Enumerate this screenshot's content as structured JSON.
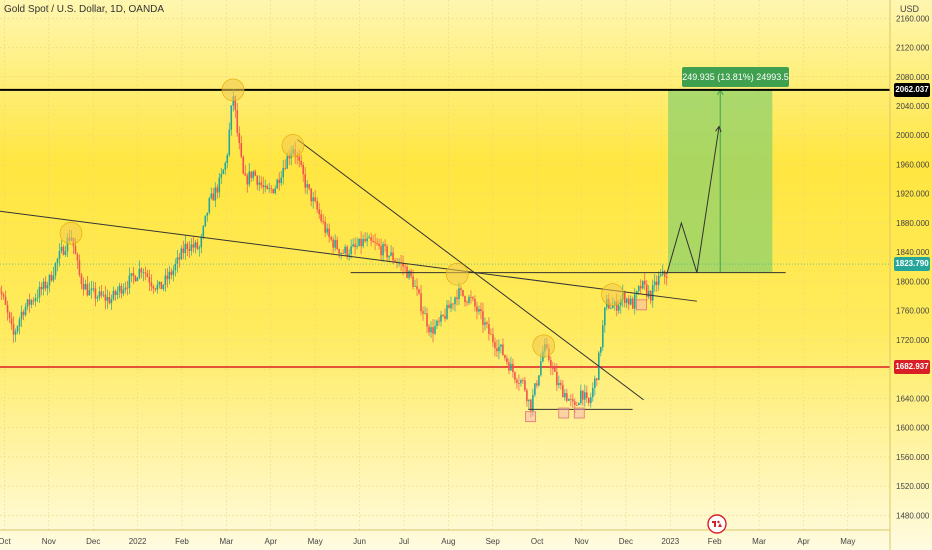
{
  "title": "Gold Spot / U.S. Dollar, 1D, OANDA",
  "currency": "USD",
  "chart_data": {
    "type": "candlestick",
    "yticks": [
      1480,
      1520,
      1560,
      1600,
      1640,
      1680,
      1720,
      1760,
      1800,
      1840,
      1880,
      1920,
      1960,
      2000,
      2040,
      2080,
      2120,
      2160
    ],
    "ytick_labels": [
      "1480.000",
      "1520.000",
      "1560.000",
      "1600.000",
      "1640.000",
      "1680.000",
      "1720.000",
      "1760.000",
      "1800.000",
      "1840.000",
      "1880.000",
      "1920.000",
      "1960.000",
      "2000.000",
      "2040.000",
      "2080.000",
      "2120.000",
      "2160.000"
    ],
    "ylim": [
      1460,
      2185
    ],
    "x_months": [
      "Oct",
      "Nov",
      "Dec",
      "2022",
      "Feb",
      "Mar",
      "Apr",
      "May",
      "Jun",
      "Jul",
      "Aug",
      "Sep",
      "Oct",
      "Nov",
      "Dec",
      "2023",
      "Feb",
      "Mar",
      "Apr",
      "May"
    ],
    "x_month_index": [
      0,
      1,
      2,
      3,
      4,
      5,
      6,
      7,
      8,
      9,
      10,
      11,
      12,
      13,
      14,
      15,
      16,
      17,
      18,
      19
    ],
    "xlim": [
      -0.1,
      19.95
    ],
    "price_path": [
      [
        -0.2,
        1805
      ],
      [
        0.0,
        1770
      ],
      [
        0.2,
        1725
      ],
      [
        0.4,
        1760
      ],
      [
        0.7,
        1780
      ],
      [
        1.0,
        1800
      ],
      [
        1.2,
        1830
      ],
      [
        1.5,
        1865
      ],
      [
        1.7,
        1805
      ],
      [
        1.9,
        1785
      ],
      [
        2.1,
        1780
      ],
      [
        2.4,
        1775
      ],
      [
        2.6,
        1790
      ],
      [
        2.9,
        1805
      ],
      [
        3.1,
        1820
      ],
      [
        3.3,
        1800
      ],
      [
        3.5,
        1790
      ],
      [
        3.8,
        1815
      ],
      [
        4.1,
        1850
      ],
      [
        4.4,
        1845
      ],
      [
        4.6,
        1905
      ],
      [
        4.85,
        1935
      ],
      [
        5.0,
        1965
      ],
      [
        5.15,
        2058
      ],
      [
        5.25,
        2000
      ],
      [
        5.4,
        1935
      ],
      [
        5.6,
        1950
      ],
      [
        5.9,
        1920
      ],
      [
        6.1,
        1930
      ],
      [
        6.3,
        1960
      ],
      [
        6.5,
        1985
      ],
      [
        6.8,
        1930
      ],
      [
        7.1,
        1890
      ],
      [
        7.3,
        1860
      ],
      [
        7.6,
        1840
      ],
      [
        7.9,
        1845
      ],
      [
        8.1,
        1855
      ],
      [
        8.4,
        1848
      ],
      [
        8.7,
        1835
      ],
      [
        9.0,
        1820
      ],
      [
        9.2,
        1800
      ],
      [
        9.4,
        1765
      ],
      [
        9.6,
        1732
      ],
      [
        9.8,
        1742
      ],
      [
        10.0,
        1762
      ],
      [
        10.2,
        1785
      ],
      [
        10.5,
        1775
      ],
      [
        10.7,
        1755
      ],
      [
        10.95,
        1725
      ],
      [
        11.2,
        1705
      ],
      [
        11.5,
        1672
      ],
      [
        11.7,
        1660
      ],
      [
        11.85,
        1628
      ],
      [
        12.0,
        1665
      ],
      [
        12.15,
        1710
      ],
      [
        12.3,
        1690
      ],
      [
        12.45,
        1660
      ],
      [
        12.65,
        1645
      ],
      [
        12.85,
        1625
      ],
      [
        13.0,
        1652
      ],
      [
        13.15,
        1628
      ],
      [
        13.35,
        1675
      ],
      [
        13.55,
        1770
      ],
      [
        13.75,
        1765
      ],
      [
        13.95,
        1780
      ],
      [
        14.15,
        1768
      ],
      [
        14.35,
        1795
      ],
      [
        14.55,
        1780
      ],
      [
        14.75,
        1805
      ],
      [
        14.92,
        1810
      ]
    ],
    "projection_path": [
      [
        14.92,
        1810
      ],
      [
        15.25,
        1880
      ],
      [
        15.6,
        1812
      ],
      [
        16.1,
        2012
      ]
    ],
    "horizontal_levels": [
      {
        "value": 2062.037,
        "label": "2062.037",
        "color": "#000000"
      },
      {
        "value": 1682.937,
        "label": "1682.937",
        "color": "#d81f26"
      }
    ],
    "current_price": {
      "value": 1823.79,
      "label": "1823.790",
      "color": "#26a69a"
    },
    "support_line": {
      "x1": 7.8,
      "x2": 17.6,
      "value": 1812
    },
    "double_bottom_line": {
      "x1": 11.8,
      "x2": 14.15,
      "value": 1625
    },
    "trendlines": [
      {
        "x1": -0.1,
        "y1": 1896,
        "x2": 15.6,
        "y2": 1773
      },
      {
        "x1": 6.6,
        "y1": 1994,
        "x2": 14.4,
        "y2": 1638
      }
    ],
    "highlights": [
      {
        "x": 1.5,
        "y": 1866
      },
      {
        "x": 5.15,
        "y": 2062
      },
      {
        "x": 6.5,
        "y": 1986
      },
      {
        "x": 10.2,
        "y": 1810
      },
      {
        "x": 12.15,
        "y": 1712
      },
      {
        "x": 13.7,
        "y": 1782
      }
    ],
    "marked_lows": [
      {
        "x": 11.85,
        "y": 1615
      },
      {
        "x": 12.6,
        "y": 1620
      },
      {
        "x": 12.95,
        "y": 1620
      },
      {
        "x": 14.35,
        "y": 1768
      }
    ],
    "measure_box": {
      "x1": 14.95,
      "x2": 17.3,
      "y_low": 1812,
      "y_high": 2062
    },
    "measure_label": "249.935 (13.81%) 24993.5"
  },
  "colors": {
    "up": "#26a69a",
    "down": "#ef5350",
    "bg_top": "#fff3a8",
    "bg_mid": "#ffe23d",
    "bg_bottom": "#fff9c4",
    "measure_fill": "#8fd16b",
    "measure_label_bg": "#3fa14f"
  },
  "icons": {
    "logo": "tradingview-logo-icon"
  }
}
